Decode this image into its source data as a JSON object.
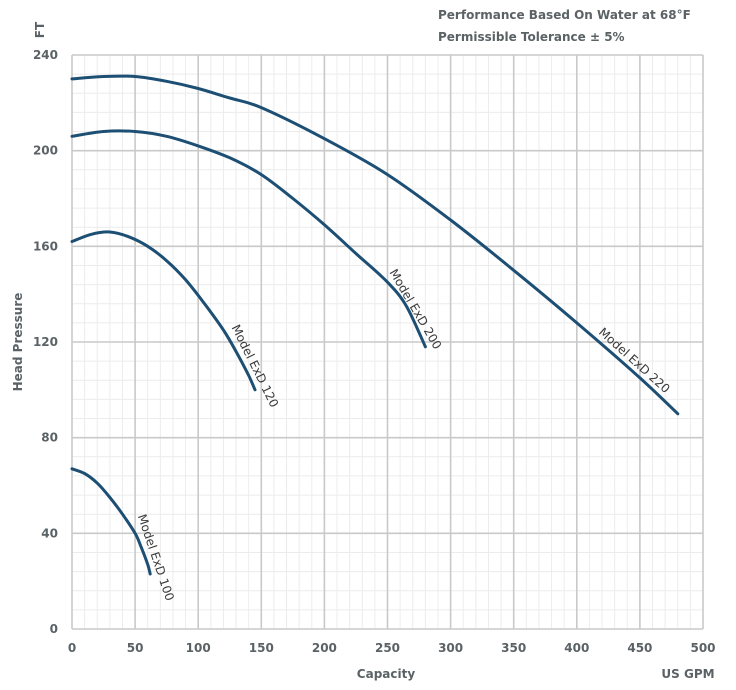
{
  "notes": {
    "line1": "Performance Based On Water at 68°F",
    "line2": "Permissible Tolerance ± 5%"
  },
  "chart_data": {
    "type": "line",
    "title": "",
    "xlabel": "Capacity",
    "x_unit": "US GPM",
    "ylabel": "Head Pressure",
    "y_unit": "FT",
    "xlim": [
      0,
      500
    ],
    "ylim": [
      0,
      240
    ],
    "x_ticks": [
      "0",
      "50",
      "100",
      "150",
      "200",
      "250",
      "300",
      "350",
      "400",
      "450",
      "500"
    ],
    "y_ticks": [
      "0",
      "40",
      "80",
      "120",
      "160",
      "200",
      "240"
    ],
    "grid": true,
    "colors": {
      "line": "#1d4f74",
      "major_grid": "#c9c9c9",
      "minor_grid": "#ececec",
      "axis_text": "#5a6266"
    },
    "series": [
      {
        "name": "Model ExD 100",
        "points": [
          [
            0,
            67
          ],
          [
            10,
            65
          ],
          [
            20,
            61
          ],
          [
            30,
            55
          ],
          [
            40,
            48
          ],
          [
            50,
            40
          ],
          [
            55,
            34
          ],
          [
            60,
            27
          ],
          [
            62,
            23
          ]
        ]
      },
      {
        "name": "Model ExD 120",
        "points": [
          [
            0,
            162
          ],
          [
            15,
            165
          ],
          [
            30,
            166
          ],
          [
            45,
            164
          ],
          [
            60,
            160
          ],
          [
            75,
            154
          ],
          [
            90,
            146
          ],
          [
            105,
            136
          ],
          [
            120,
            125
          ],
          [
            130,
            116
          ],
          [
            140,
            106
          ],
          [
            145,
            100
          ]
        ]
      },
      {
        "name": "Model ExD 200",
        "points": [
          [
            0,
            206
          ],
          [
            25,
            208
          ],
          [
            50,
            208
          ],
          [
            75,
            206
          ],
          [
            100,
            202
          ],
          [
            125,
            197
          ],
          [
            150,
            190
          ],
          [
            175,
            180
          ],
          [
            200,
            169
          ],
          [
            225,
            157
          ],
          [
            250,
            145
          ],
          [
            265,
            135
          ],
          [
            280,
            118
          ]
        ]
      },
      {
        "name": "Model ExD 220",
        "points": [
          [
            0,
            230
          ],
          [
            25,
            231
          ],
          [
            50,
            231
          ],
          [
            75,
            229
          ],
          [
            100,
            226
          ],
          [
            125,
            222
          ],
          [
            150,
            218
          ],
          [
            200,
            205
          ],
          [
            250,
            190
          ],
          [
            300,
            171
          ],
          [
            350,
            150
          ],
          [
            400,
            128
          ],
          [
            450,
            105
          ],
          [
            480,
            90
          ]
        ]
      }
    ]
  }
}
